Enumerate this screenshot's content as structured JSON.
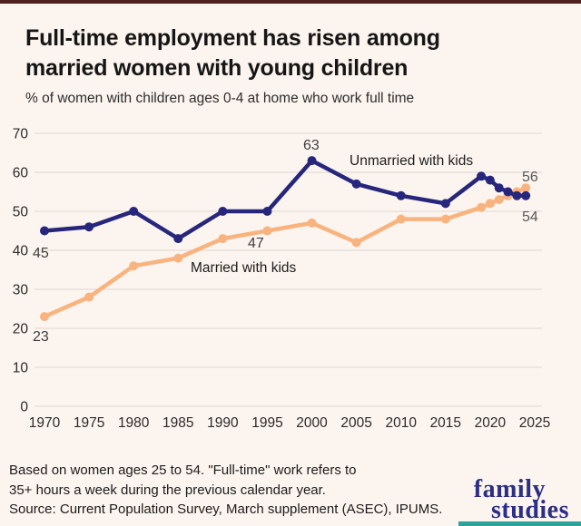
{
  "page": {
    "title_line1": "Full-time employment has risen among",
    "title_line2": "married women with young children",
    "subtitle": "% of women with children ages 0-4 at home who work full time"
  },
  "chart_data": {
    "type": "line",
    "title": "Full-time employment has risen among married women with young children",
    "subtitle": "% of women with children ages 0-4 at home who work full time",
    "xlabel": "",
    "ylabel": "",
    "xlim": [
      1970,
      2025
    ],
    "ylim": [
      0,
      70
    ],
    "x_ticks": [
      1970,
      1975,
      1980,
      1985,
      1990,
      1995,
      2000,
      2005,
      2010,
      2015,
      2020,
      2025
    ],
    "y_ticks": [
      0,
      10,
      20,
      30,
      40,
      50,
      60,
      70
    ],
    "grid": "horizontal",
    "legend_position": "inline-annotations",
    "series": [
      {
        "name": "Married with kids",
        "color": "#f9b37e",
        "x": [
          1970,
          1975,
          1980,
          1985,
          1990,
          1995,
          2000,
          2005,
          2010,
          2015,
          2019,
          2020,
          2021,
          2022,
          2023,
          2024
        ],
        "values": [
          23,
          28,
          36,
          38,
          43,
          45,
          47,
          42,
          48,
          48,
          51,
          52,
          53,
          54,
          55,
          56
        ]
      },
      {
        "name": "Unmarried with kids",
        "color": "#26267d",
        "x": [
          1970,
          1975,
          1980,
          1985,
          1990,
          1995,
          2000,
          2005,
          2010,
          2015,
          2019,
          2020,
          2021,
          2022,
          2023,
          2024
        ],
        "values": [
          45,
          46,
          50,
          43,
          50,
          50,
          63,
          57,
          54,
          52,
          59,
          58,
          56,
          55,
          54,
          54
        ]
      }
    ],
    "annotations": {
      "unmarried_start": "45",
      "married_start": "23",
      "unmarried_peak": "63",
      "married_2000": "47",
      "unmarried_label": "Unmarried with kids",
      "married_label": "Married with kids",
      "married_end": "56",
      "unmarried_end": "54"
    },
    "axis_text_color": "#2b2b2b",
    "gridline_color": "#ded8d2"
  },
  "footer": {
    "line1": "Based on women ages 25 to 54. \"Full-time\" work refers to",
    "line2": "35+ hours a week  during the previous calendar year.",
    "line3": "Source: Current Population Survey, March supplement (ASEC), IPUMS."
  },
  "logo": {
    "word1": "family",
    "word2": "studies"
  },
  "colors": {
    "background": "#fcf4ee",
    "top_bar": "#4e1e20",
    "teal_bar": "#2aa39a",
    "unmarried_line": "#26267d",
    "married_line": "#f9b37e",
    "logo_navy": "#2b2f85"
  }
}
